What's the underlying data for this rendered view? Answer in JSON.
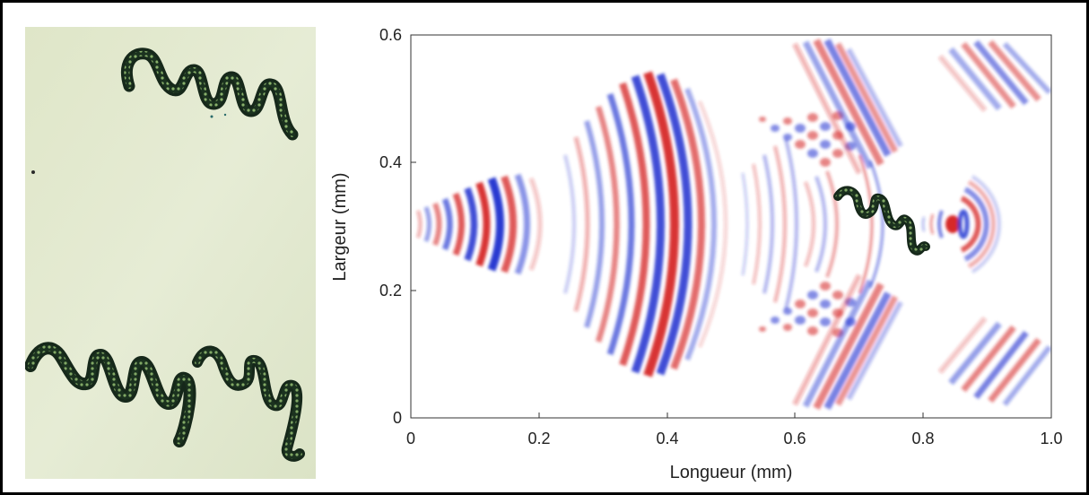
{
  "figure": {
    "plot": {
      "xlabel": "Longueur (mm)",
      "ylabel": "Largeur (mm)",
      "xticks": [
        "0",
        "0.2",
        "0.4",
        "0.6",
        "0.8",
        "1.0"
      ],
      "yticks": [
        "0",
        "0.2",
        "0.4",
        "0.6"
      ],
      "xlim": [
        0,
        1.0
      ],
      "ylim": [
        0,
        0.6
      ]
    },
    "colors": {
      "positive": "#d42020",
      "negative": "#1c2ecf",
      "micrograph_bg": "#e3e9cf",
      "spiral_dark": "#16281a",
      "spiral_light": "#8fc06c"
    },
    "icons": [
      "spiral-organism-icon"
    ]
  }
}
